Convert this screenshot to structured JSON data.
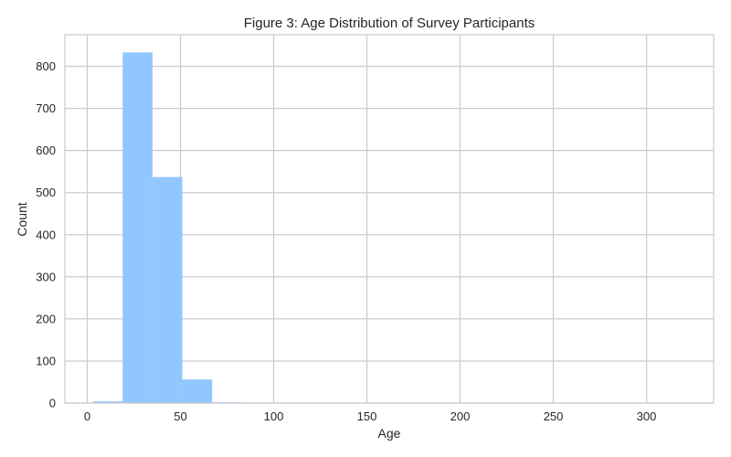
{
  "chart_data": {
    "type": "bar",
    "title": "Figure 3: Age Distribution of Survey Participants",
    "xlabel": "Age",
    "ylabel": "Count",
    "xlim": [
      -12,
      336
    ],
    "ylim": [
      0,
      875
    ],
    "xticks": [
      0,
      50,
      100,
      150,
      200,
      250,
      300
    ],
    "yticks": [
      0,
      100,
      200,
      300,
      400,
      500,
      600,
      700,
      800
    ],
    "grid": true,
    "bin_edges": [
      3,
      19,
      35,
      51,
      67,
      83,
      99,
      115,
      131,
      147,
      163,
      179,
      195,
      211,
      227,
      243,
      259,
      275,
      291,
      307,
      323
    ],
    "values": [
      4,
      833,
      537,
      56,
      2,
      1,
      1,
      0,
      0,
      0,
      0,
      0,
      0,
      0,
      0,
      0,
      0,
      0,
      0,
      1
    ],
    "bar_color": "#92c6ff",
    "grid_color": "#cccccc",
    "frame_color": "#cccccc"
  }
}
